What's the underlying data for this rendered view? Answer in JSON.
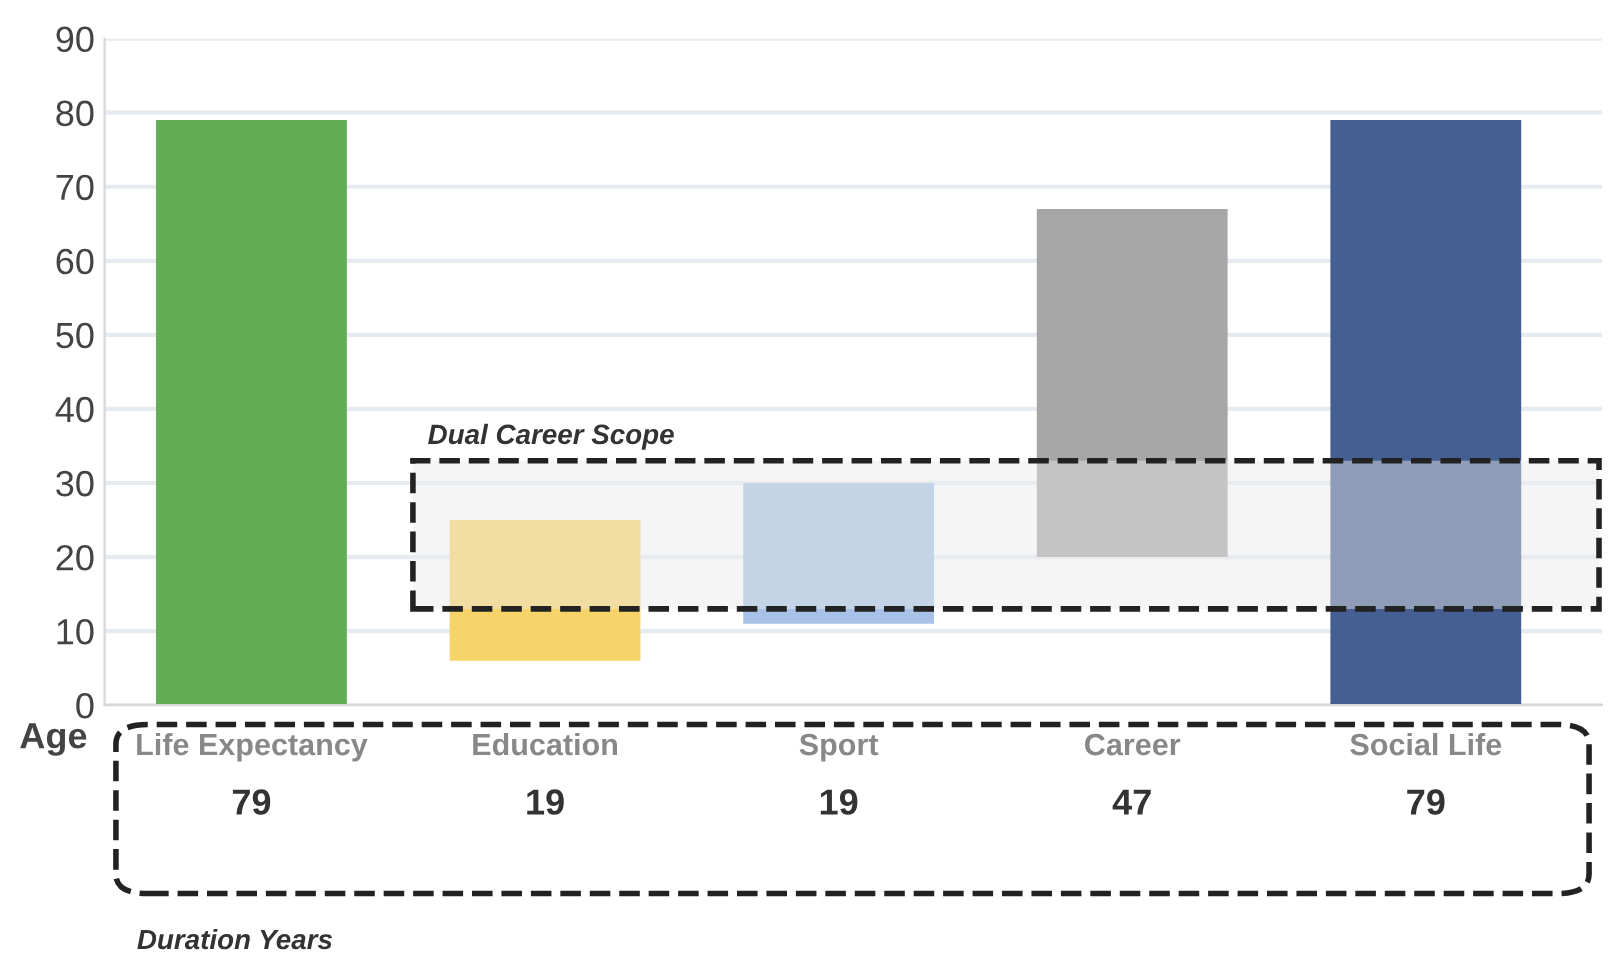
{
  "chart_data": {
    "type": "bar",
    "categories": [
      "Life Expectancy",
      "Education",
      "Sport",
      "Career",
      "Social Life"
    ],
    "values": [
      79,
      19,
      19,
      47,
      79
    ],
    "base": [
      0,
      6,
      11,
      20,
      0
    ],
    "colors": [
      "#62ad55",
      "#f7d469",
      "#a8c1e6",
      "#a6a6a6",
      "#465f92"
    ],
    "data_labels": true,
    "ylim": [
      0,
      90
    ],
    "yticks": [
      0,
      10,
      20,
      30,
      40,
      50,
      60,
      70,
      80,
      90
    ],
    "grid": "y",
    "bands": [
      {
        "axis": "y",
        "from": 13,
        "to": 33,
        "label": "Dual Career Scope",
        "color": "#e8e8e8"
      }
    ],
    "annotations": [
      "Age",
      "Duration Years"
    ]
  }
}
